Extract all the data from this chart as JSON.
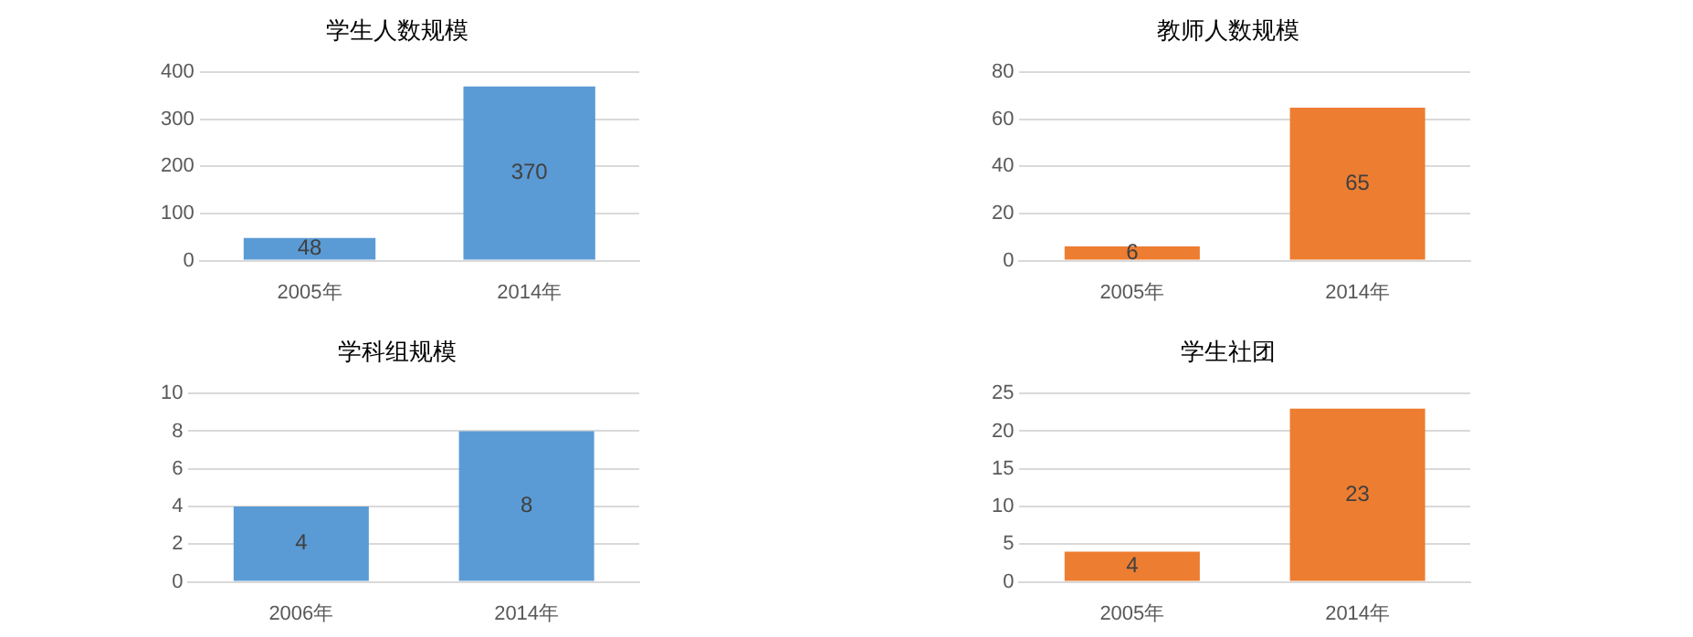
{
  "chart_data": [
    {
      "type": "bar",
      "title": "学生人数规模",
      "categories": [
        "2005年",
        "2014年"
      ],
      "values": [
        48,
        370
      ],
      "color": "#5b9bd5",
      "ylim": [
        0,
        400
      ],
      "yticks": [
        0,
        100,
        200,
        300,
        400
      ],
      "grid": "y",
      "data_labels": true
    },
    {
      "type": "bar",
      "title": "教师人数规模",
      "categories": [
        "2005年",
        "2014年"
      ],
      "values": [
        6,
        65
      ],
      "color": "#ed7d31",
      "ylim": [
        0,
        80
      ],
      "yticks": [
        0,
        20,
        40,
        60,
        80
      ],
      "grid": "y",
      "data_labels": true
    },
    {
      "type": "bar",
      "title": "学科组规模",
      "categories": [
        "2006年",
        "2014年"
      ],
      "values": [
        4,
        8
      ],
      "color": "#5b9bd5",
      "ylim": [
        0,
        10
      ],
      "yticks": [
        0,
        2,
        4,
        6,
        8,
        10
      ],
      "grid": "y",
      "data_labels": true
    },
    {
      "type": "bar",
      "title": "学生社团",
      "categories": [
        "2005年",
        "2014年"
      ],
      "values": [
        4,
        23
      ],
      "color": "#ed7d31",
      "ylim": [
        0,
        25
      ],
      "yticks": [
        0,
        5,
        10,
        15,
        20,
        25
      ],
      "grid": "y",
      "data_labels": true
    }
  ]
}
